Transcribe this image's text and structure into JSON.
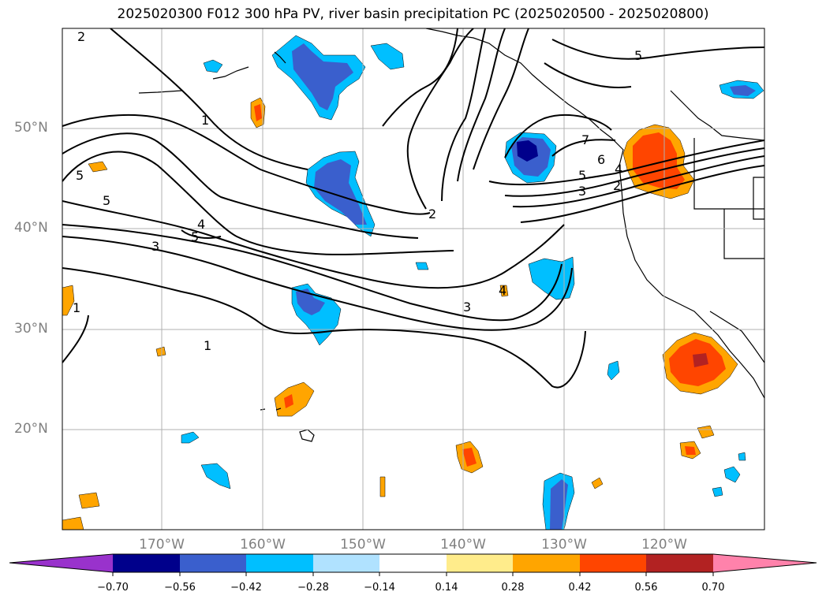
{
  "title": "2025020300 F012 300 hPa PV, river basin precipitation PC (2025020500 - 2025020800)",
  "map": {
    "projection": "plate-carree",
    "lon_range": [
      -180,
      -110
    ],
    "lat_range": [
      10,
      60
    ],
    "gridlines": true,
    "lat_labels": [
      "50°N",
      "40°N",
      "30°N",
      "20°N"
    ],
    "lon_labels": [
      "170°W",
      "160°W",
      "150°W",
      "140°W",
      "130°W",
      "120°W"
    ],
    "pv_contour_labels": [
      "2",
      "1",
      "5",
      "5",
      "4",
      "3",
      "5",
      "1",
      "1",
      "2",
      "3",
      "4",
      "5",
      "7",
      "6",
      "5",
      "4",
      "3",
      "2"
    ]
  },
  "colorbar": {
    "ticks": [
      "−0.70",
      "−0.56",
      "−0.42",
      "−0.28",
      "−0.14",
      "0.14",
      "0.28",
      "0.42",
      "0.56",
      "0.70"
    ],
    "colors": {
      "under": "#9932cc",
      "bins": [
        "#00008b",
        "#3a5fcd",
        "#00bfff",
        "#b0e2ff",
        "#ffffff",
        "#ffec8b",
        "#ffa500",
        "#ff4500",
        "#b22222"
      ],
      "over": "#ff82ab"
    }
  }
}
